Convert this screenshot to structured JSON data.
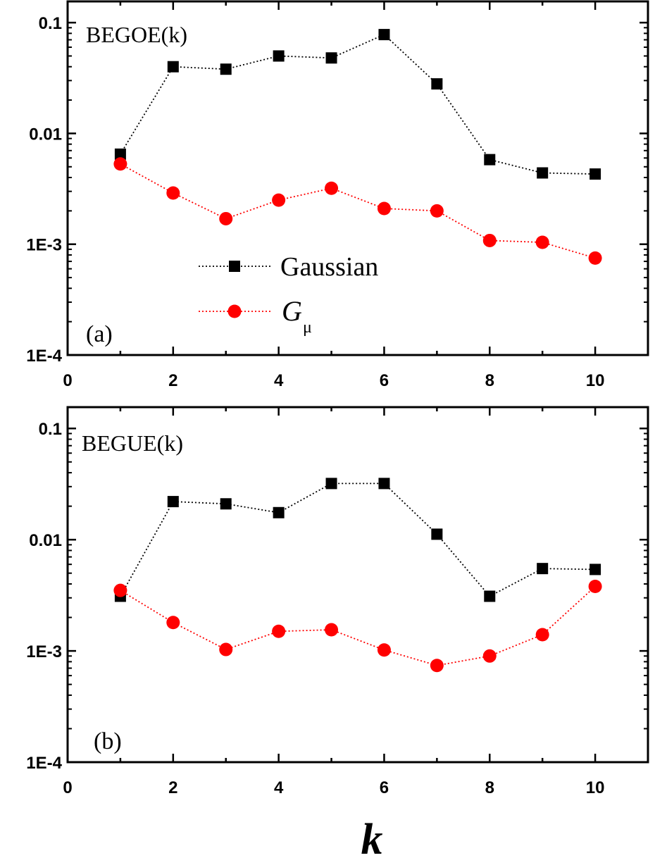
{
  "chart_data": [
    {
      "type": "line",
      "panel_label": "(a)",
      "annotation": "BEGOE(k)",
      "x": [
        1,
        2,
        3,
        4,
        5,
        6,
        7,
        8,
        9,
        10
      ],
      "xlim": [
        0,
        11
      ],
      "ylim": [
        0.0001,
        0.1
      ],
      "yscale": "log",
      "xticks": [
        0,
        2,
        4,
        6,
        8,
        10
      ],
      "xtick_labels": [
        "0",
        "2",
        "4",
        "6",
        "8",
        "10"
      ],
      "yticks": [
        0.0001,
        0.001,
        0.01,
        0.1
      ],
      "ytick_labels": [
        "1E-4",
        "1E-3",
        "0.01",
        "0.1"
      ],
      "series": [
        {
          "name": "Gaussian",
          "color": "#000000",
          "marker": "square",
          "line": "dotted",
          "values": [
            0.0065,
            0.04,
            0.038,
            0.05,
            0.048,
            0.078,
            0.028,
            0.0058,
            0.0044,
            0.0043
          ]
        },
        {
          "name": "Gμ",
          "color": "#ff0000",
          "marker": "circle",
          "line": "dotted",
          "values": [
            0.0053,
            0.0029,
            0.0017,
            0.0025,
            0.0032,
            0.0021,
            0.002,
            0.00108,
            0.00104,
            0.00075
          ]
        }
      ],
      "legend": {
        "placement": "lower-center",
        "entries": [
          {
            "label": "Gaussian",
            "color": "#000000",
            "marker": "square"
          },
          {
            "label_main": "G",
            "label_sub": "μ",
            "color": "#ff0000",
            "marker": "circle"
          }
        ]
      }
    },
    {
      "type": "line",
      "panel_label": "(b)",
      "annotation": "BEGUE(k)",
      "x": [
        1,
        2,
        3,
        4,
        5,
        6,
        7,
        8,
        9,
        10
      ],
      "xlim": [
        0,
        11
      ],
      "ylim": [
        0.0001,
        0.1
      ],
      "yscale": "log",
      "xticks": [
        0,
        2,
        4,
        6,
        8,
        10
      ],
      "xtick_labels": [
        "0",
        "2",
        "4",
        "6",
        "8",
        "10"
      ],
      "yticks": [
        0.0001,
        0.001,
        0.01,
        0.1
      ],
      "ytick_labels": [
        "1E-4",
        "1E-3",
        "0.01",
        "0.1"
      ],
      "series": [
        {
          "name": "Gaussian",
          "color": "#000000",
          "marker": "square",
          "line": "dotted",
          "values": [
            0.0031,
            0.022,
            0.021,
            0.0175,
            0.032,
            0.032,
            0.0112,
            0.0031,
            0.0055,
            0.0054
          ]
        },
        {
          "name": "Gμ",
          "color": "#ff0000",
          "marker": "circle",
          "line": "dotted",
          "values": [
            0.0035,
            0.0018,
            0.00103,
            0.0015,
            0.00155,
            0.00102,
            0.00074,
            0.0009,
            0.0014,
            0.0038
          ]
        }
      ]
    }
  ],
  "xlabel": "k"
}
